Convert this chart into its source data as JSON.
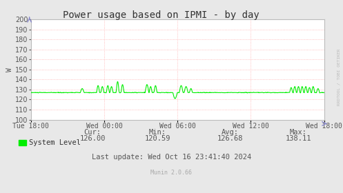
{
  "title": "Power usage based on IPMI - by day",
  "ylabel": "W",
  "background_color": "#e8e8e8",
  "plot_bg_color": "#ffffff",
  "grid_color": "#ffaaaa",
  "line_color": "#00ee00",
  "ylim": [
    100,
    200
  ],
  "yticks": [
    100,
    110,
    120,
    130,
    140,
    150,
    160,
    170,
    180,
    190,
    200
  ],
  "xtick_labels": [
    "Tue 18:00",
    "Wed 00:00",
    "Wed 06:00",
    "Wed 12:00",
    "Wed 18:00"
  ],
  "xtick_positions": [
    0,
    6,
    12,
    18,
    24
  ],
  "legend_label": "System Level",
  "cur": "126.00",
  "min": "120.59",
  "avg": "126.68",
  "max": "138.11",
  "last_update": "Last update: Wed Oct 16 23:41:40 2024",
  "munin_version": "Munin 2.0.66",
  "watermark": "RRDTOOL / TOBI OETIKER",
  "title_fontsize": 10,
  "axis_fontsize": 7,
  "legend_fontsize": 7.5,
  "stats_fontsize": 7.5,
  "base_level": 127.0
}
